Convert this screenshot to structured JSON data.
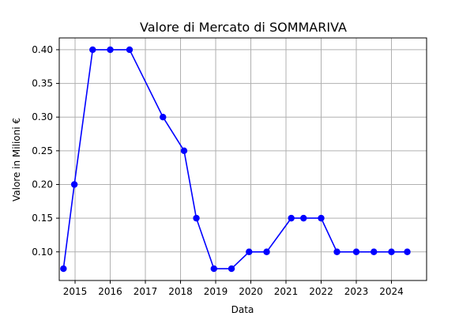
{
  "chart_data": {
    "type": "line",
    "title": "Valore di Mercato di SOMMARIVA",
    "xlabel": "Data",
    "ylabel": "Valore in Milioni €",
    "grid": true,
    "x_ticks": [
      "2015",
      "2016",
      "2017",
      "2018",
      "2019",
      "2020",
      "2021",
      "2022",
      "2023",
      "2024"
    ],
    "y_ticks": [
      "0.10",
      "0.15",
      "0.20",
      "0.25",
      "0.30",
      "0.35",
      "0.40"
    ],
    "xlim": [
      2014.55,
      2025.0
    ],
    "ylim": [
      0.0575,
      0.4175
    ],
    "series": [
      {
        "color": "#0000ff",
        "marker": "circle",
        "x": [
          2014.67,
          2014.98,
          2015.5,
          2016.0,
          2016.55,
          2017.5,
          2018.1,
          2018.45,
          2018.95,
          2019.45,
          2019.95,
          2020.45,
          2021.15,
          2021.5,
          2022.0,
          2022.45,
          2023.0,
          2023.5,
          2024.0,
          2024.45
        ],
        "y": [
          0.075,
          0.2,
          0.4,
          0.4,
          0.4,
          0.3,
          0.25,
          0.15,
          0.075,
          0.075,
          0.1,
          0.1,
          0.15,
          0.15,
          0.15,
          0.1,
          0.1,
          0.1,
          0.1,
          0.1
        ]
      }
    ]
  }
}
